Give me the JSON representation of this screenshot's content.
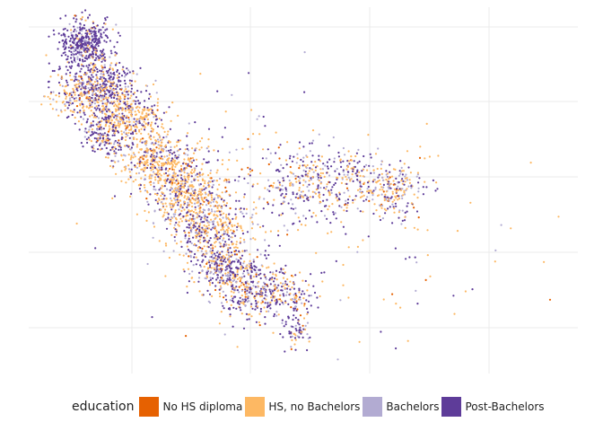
{
  "chart_data": {
    "type": "scatter",
    "title": "",
    "xlabel": "",
    "ylabel": "",
    "grid": true,
    "legend_placement": "bottom",
    "legend_title": "education",
    "series": [
      {
        "name": "No HS diploma",
        "color": "#e66101"
      },
      {
        "name": "HS, no Bachelors",
        "color": "#fdb863"
      },
      {
        "name": "Bachelors",
        "color": "#b2abd2"
      },
      {
        "name": "Post-Bachelors",
        "color": "#5e3c99"
      }
    ]
  }
}
